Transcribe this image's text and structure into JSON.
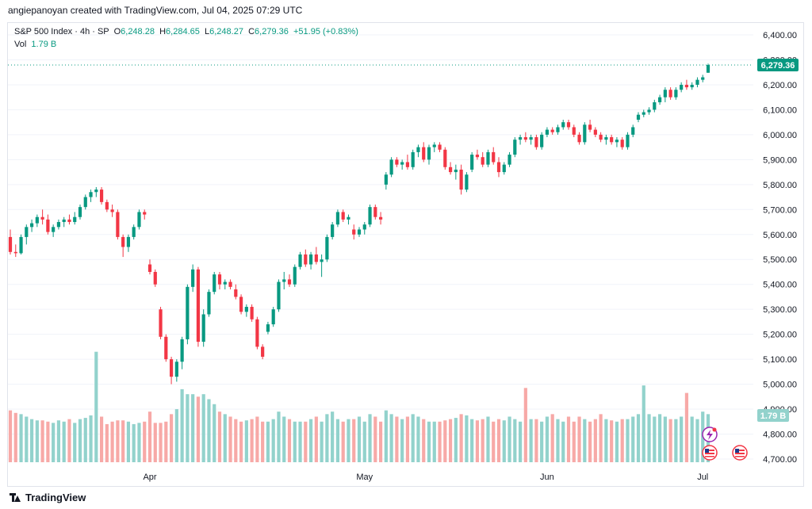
{
  "header": {
    "caption": "angiepanoyan created with TradingView.com, Jul 04, 2025 07:29 UTC"
  },
  "legend": {
    "symbol": "S&P 500 Index · 4h · SP",
    "o_label": "O",
    "o_value": "6,248.28",
    "h_label": "H",
    "h_value": "6,284.65",
    "l_label": "L",
    "l_value": "6,248.27",
    "c_label": "C",
    "c_value": "6,279.36",
    "change": "+51.95 (+0.83%)",
    "vol_label": "Vol",
    "vol_value": "1.79 B"
  },
  "footer": {
    "brand": "TradingView"
  },
  "colors": {
    "up": "#089981",
    "down": "#f23645",
    "up_vol": "#92d2cc",
    "down_vol": "#f7a9a7",
    "grid": "#f0f3fa",
    "axis_text": "#131722"
  },
  "chart_data": {
    "type": "candlestick",
    "symbol": "S&P 500 Index",
    "interval": "4h",
    "y_ticks": [
      "6,400.00",
      "6,300.00",
      "6,200.00",
      "6,100.00",
      "6,000.00",
      "5,900.00",
      "5,800.00",
      "5,700.00",
      "5,600.00",
      "5,500.00",
      "5,400.00",
      "5,300.00",
      "5,200.00",
      "5,100.00",
      "5,000.00",
      "4,900.00",
      "4,800.00",
      "4,700.00"
    ],
    "ylim": [
      4700,
      6400
    ],
    "x_ticks": [
      "Apr",
      "May",
      "Jun",
      "Jul"
    ],
    "last_price_label": "6,279.36",
    "last_price": 6279.36,
    "volume_label": "1.79 B",
    "grid": true,
    "candles": [
      [
        5590,
        5620,
        5520,
        5530
      ],
      [
        5530,
        5560,
        5510,
        5525
      ],
      [
        5525,
        5600,
        5520,
        5590
      ],
      [
        5590,
        5640,
        5560,
        5630
      ],
      [
        5630,
        5660,
        5610,
        5645
      ],
      [
        5645,
        5680,
        5630,
        5670
      ],
      [
        5670,
        5700,
        5640,
        5660
      ],
      [
        5660,
        5680,
        5600,
        5610
      ],
      [
        5610,
        5640,
        5590,
        5630
      ],
      [
        5630,
        5660,
        5620,
        5650
      ],
      [
        5650,
        5670,
        5630,
        5660
      ],
      [
        5660,
        5680,
        5640,
        5650
      ],
      [
        5650,
        5690,
        5640,
        5670
      ],
      [
        5670,
        5720,
        5660,
        5710
      ],
      [
        5710,
        5760,
        5700,
        5750
      ],
      [
        5750,
        5780,
        5730,
        5770
      ],
      [
        5770,
        5790,
        5750,
        5780
      ],
      [
        5780,
        5790,
        5720,
        5730
      ],
      [
        5730,
        5740,
        5690,
        5700
      ],
      [
        5700,
        5720,
        5670,
        5690
      ],
      [
        5690,
        5700,
        5580,
        5590
      ],
      [
        5590,
        5600,
        5510,
        5550
      ],
      [
        5550,
        5600,
        5530,
        5590
      ],
      [
        5590,
        5640,
        5580,
        5630
      ],
      [
        5630,
        5700,
        5620,
        5690
      ],
      [
        5690,
        5700,
        5660,
        5680
      ],
      [
        5480,
        5500,
        5440,
        5450
      ],
      [
        5450,
        5460,
        5390,
        5400
      ],
      [
        5300,
        5310,
        5180,
        5190
      ],
      [
        5190,
        5200,
        5090,
        5100
      ],
      [
        5100,
        5110,
        5000,
        5030
      ],
      [
        5030,
        5100,
        5010,
        5090
      ],
      [
        5090,
        5190,
        5060,
        5180
      ],
      [
        5180,
        5400,
        5160,
        5390
      ],
      [
        5390,
        5480,
        5370,
        5460
      ],
      [
        5460,
        5470,
        5150,
        5170
      ],
      [
        5170,
        5300,
        5150,
        5280
      ],
      [
        5280,
        5380,
        5270,
        5370
      ],
      [
        5370,
        5450,
        5360,
        5440
      ],
      [
        5440,
        5450,
        5380,
        5400
      ],
      [
        5400,
        5420,
        5380,
        5410
      ],
      [
        5410,
        5420,
        5380,
        5390
      ],
      [
        5380,
        5400,
        5340,
        5350
      ],
      [
        5350,
        5360,
        5280,
        5290
      ],
      [
        5290,
        5320,
        5270,
        5310
      ],
      [
        5310,
        5320,
        5250,
        5260
      ],
      [
        5260,
        5270,
        5140,
        5150
      ],
      [
        5150,
        5160,
        5100,
        5110
      ],
      [
        5210,
        5250,
        5200,
        5240
      ],
      [
        5240,
        5310,
        5230,
        5300
      ],
      [
        5300,
        5420,
        5290,
        5410
      ],
      [
        5410,
        5450,
        5380,
        5420
      ],
      [
        5420,
        5440,
        5390,
        5400
      ],
      [
        5400,
        5480,
        5390,
        5470
      ],
      [
        5470,
        5530,
        5460,
        5520
      ],
      [
        5520,
        5540,
        5470,
        5480
      ],
      [
        5480,
        5530,
        5460,
        5520
      ],
      [
        5520,
        5550,
        5480,
        5490
      ],
      [
        5490,
        5520,
        5430,
        5500
      ],
      [
        5500,
        5600,
        5490,
        5590
      ],
      [
        5590,
        5650,
        5580,
        5640
      ],
      [
        5640,
        5700,
        5630,
        5690
      ],
      [
        5690,
        5700,
        5650,
        5660
      ],
      [
        5660,
        5680,
        5640,
        5670
      ],
      [
        5620,
        5640,
        5580,
        5600
      ],
      [
        5600,
        5630,
        5590,
        5620
      ],
      [
        5620,
        5650,
        5600,
        5640
      ],
      [
        5640,
        5720,
        5630,
        5710
      ],
      [
        5710,
        5720,
        5660,
        5670
      ],
      [
        5670,
        5690,
        5640,
        5660
      ],
      [
        5800,
        5850,
        5780,
        5840
      ],
      [
        5840,
        5910,
        5830,
        5900
      ],
      [
        5900,
        5910,
        5870,
        5880
      ],
      [
        5880,
        5900,
        5860,
        5890
      ],
      [
        5890,
        5920,
        5860,
        5870
      ],
      [
        5870,
        5940,
        5860,
        5930
      ],
      [
        5930,
        5960,
        5910,
        5950
      ],
      [
        5950,
        5970,
        5890,
        5900
      ],
      [
        5900,
        5960,
        5880,
        5950
      ],
      [
        5950,
        5970,
        5930,
        5960
      ],
      [
        5960,
        5970,
        5930,
        5940
      ],
      [
        5940,
        5950,
        5860,
        5870
      ],
      [
        5870,
        5890,
        5840,
        5850
      ],
      [
        5850,
        5880,
        5820,
        5860
      ],
      [
        5860,
        5880,
        5760,
        5780
      ],
      [
        5780,
        5850,
        5770,
        5840
      ],
      [
        5860,
        5930,
        5850,
        5920
      ],
      [
        5920,
        5940,
        5900,
        5910
      ],
      [
        5910,
        5930,
        5870,
        5880
      ],
      [
        5880,
        5940,
        5870,
        5930
      ],
      [
        5930,
        5950,
        5880,
        5890
      ],
      [
        5890,
        5910,
        5830,
        5850
      ],
      [
        5850,
        5890,
        5840,
        5880
      ],
      [
        5880,
        5930,
        5870,
        5920
      ],
      [
        5920,
        5990,
        5910,
        5980
      ],
      [
        5980,
        6000,
        5960,
        5990
      ],
      [
        5990,
        6010,
        5970,
        5980
      ],
      [
        5980,
        6000,
        5960,
        5990
      ],
      [
        5990,
        6000,
        5940,
        5950
      ],
      [
        5950,
        6010,
        5940,
        6000
      ],
      [
        6000,
        6030,
        5990,
        6020
      ],
      [
        6020,
        6030,
        6000,
        6010
      ],
      [
        6010,
        6040,
        6000,
        6030
      ],
      [
        6030,
        6060,
        6020,
        6050
      ],
      [
        6050,
        6060,
        6020,
        6030
      ],
      [
        6030,
        6040,
        5990,
        6000
      ],
      [
        6000,
        6010,
        5960,
        5970
      ],
      [
        5970,
        6050,
        5960,
        6040
      ],
      [
        6040,
        6060,
        6010,
        6020
      ],
      [
        6020,
        6030,
        5990,
        6000
      ],
      [
        6000,
        6010,
        5970,
        5980
      ],
      [
        5980,
        6000,
        5960,
        5990
      ],
      [
        5990,
        6000,
        5960,
        5970
      ],
      [
        5970,
        5990,
        5950,
        5980
      ],
      [
        5980,
        5990,
        5940,
        5950
      ],
      [
        5950,
        6010,
        5940,
        6000
      ],
      [
        6000,
        6040,
        5990,
        6030
      ],
      [
        6060,
        6090,
        6050,
        6080
      ],
      [
        6080,
        6100,
        6070,
        6090
      ],
      [
        6090,
        6110,
        6080,
        6100
      ],
      [
        6100,
        6140,
        6090,
        6130
      ],
      [
        6130,
        6160,
        6120,
        6150
      ],
      [
        6150,
        6190,
        6130,
        6180
      ],
      [
        6180,
        6190,
        6140,
        6150
      ],
      [
        6150,
        6190,
        6140,
        6180
      ],
      [
        6180,
        6210,
        6170,
        6200
      ],
      [
        6200,
        6220,
        6180,
        6190
      ],
      [
        6190,
        6210,
        6180,
        6200
      ],
      [
        6200,
        6230,
        6190,
        6220
      ],
      [
        6220,
        6240,
        6210,
        6230
      ],
      [
        6248.28,
        6284.65,
        6248.27,
        6279.36
      ]
    ],
    "volumes": [
      4895,
      4885,
      4880,
      4870,
      4860,
      4855,
      4855,
      4850,
      4845,
      4855,
      4850,
      4860,
      4845,
      4860,
      4865,
      4875,
      5130,
      4870,
      4840,
      4850,
      4855,
      4855,
      4850,
      4840,
      4845,
      4850,
      4890,
      4845,
      4845,
      4850,
      4880,
      4900,
      4980,
      4960,
      4960,
      4950,
      4960,
      4940,
      4920,
      4890,
      4880,
      4870,
      4860,
      4850,
      4855,
      4860,
      4870,
      4850,
      4850,
      4860,
      4890,
      4870,
      4860,
      4850,
      4850,
      4850,
      4860,
      4870,
      4850,
      4880,
      4890,
      4860,
      4850,
      4860,
      4860,
      4870,
      4850,
      4880,
      4870,
      4850,
      4895,
      4880,
      4870,
      4860,
      4870,
      4880,
      4870,
      4860,
      4850,
      4850,
      4850,
      4855,
      4860,
      4865,
      4880,
      4875,
      4860,
      4855,
      4860,
      4870,
      4850,
      4860,
      4855,
      4870,
      4860,
      4850,
      4985,
      4860,
      4860,
      4850,
      4870,
      4880,
      4860,
      4850,
      4870,
      4850,
      4870,
      4860,
      4850,
      4860,
      4880,
      4860,
      4855,
      4850,
      4860,
      4860,
      4870,
      4880,
      4995,
      4880,
      4870,
      4880,
      4870,
      4860,
      4860,
      4870,
      4965,
      4870,
      4860,
      4890,
      4880
    ]
  }
}
